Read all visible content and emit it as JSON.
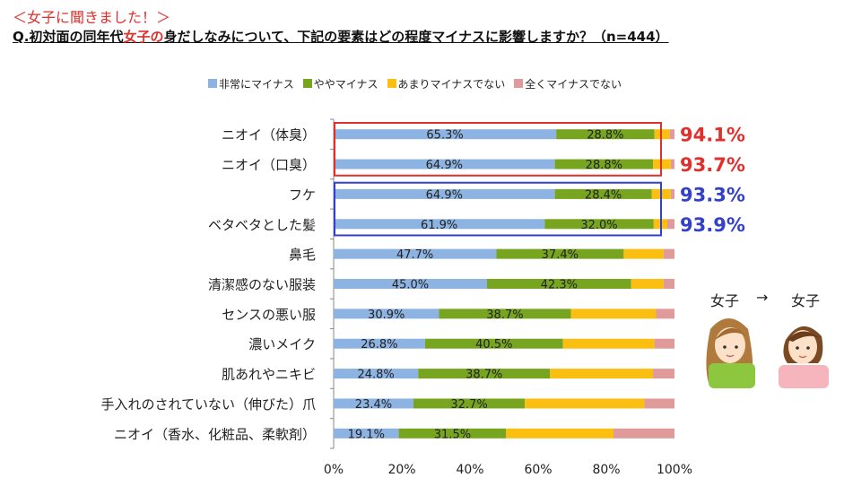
{
  "header": {
    "tag": "＜女子に聞きました！＞",
    "question_prefix": "Q.初対面の同年代",
    "question_highlight": "女子の",
    "question_suffix": "身だしなみについて、下記の要素はどの程度マイナスに影響しますか？（n=444）"
  },
  "colors": {
    "very_negative": "#8db3e2",
    "somewhat_negative": "#77a520",
    "not_very_negative": "#fbbf12",
    "not_negative": "#e09a9a",
    "red_box": "#e0302b",
    "blue_box": "#3340c8"
  },
  "illustration": {
    "label_left": "女子",
    "arrow": "→",
    "label_right": "女子",
    "left_icon": "woman-long-hair-icon",
    "right_icon": "woman-short-hair-icon"
  },
  "chart_data": {
    "type": "bar",
    "orientation": "horizontal-stacked-100",
    "legend_position": "top",
    "categories": [
      "ニオイ（体臭）",
      "ニオイ（口臭）",
      "フケ",
      "ベタベタとした髪",
      "鼻毛",
      "清潔感のない服装",
      "センスの悪い服",
      "濃いメイク",
      "肌あれやニキビ",
      "手入れのされていない（伸びた）爪",
      "ニオイ（香水、化粧品、柔軟剤）"
    ],
    "series": [
      {
        "name": "非常にマイナス",
        "values": [
          65.3,
          64.9,
          64.9,
          61.9,
          47.7,
          45.0,
          30.9,
          26.8,
          24.8,
          23.4,
          19.1
        ]
      },
      {
        "name": "ややマイナス",
        "values": [
          28.8,
          28.8,
          28.4,
          32.0,
          37.4,
          42.3,
          38.7,
          40.5,
          38.7,
          32.7,
          31.5
        ]
      },
      {
        "name": "あまりマイナスでない",
        "values": [
          4.5,
          5.2,
          5.6,
          4.0,
          11.7,
          9.5,
          25.0,
          26.8,
          30.2,
          35.1,
          31.5
        ]
      },
      {
        "name": "全くマイナスでない",
        "values": [
          1.4,
          1.1,
          1.1,
          2.1,
          3.2,
          3.2,
          5.4,
          5.9,
          6.3,
          8.8,
          17.9
        ]
      }
    ],
    "data_labels": [
      [
        "65.3%",
        "64.9%",
        "64.9%",
        "61.9%",
        "47.7%",
        "45.0%",
        "30.9%",
        "26.8%",
        "24.8%",
        "23.4%",
        "19.1%"
      ],
      [
        "28.8%",
        "28.8%",
        "28.4%",
        "32.0%",
        "37.4%",
        "42.3%",
        "38.7%",
        "40.5%",
        "38.7%",
        "32.7%",
        "31.5%"
      ]
    ],
    "totals": [
      {
        "row": 0,
        "label": "94.1%",
        "group": "red"
      },
      {
        "row": 1,
        "label": "93.7%",
        "group": "red"
      },
      {
        "row": 2,
        "label": "93.3%",
        "group": "blue"
      },
      {
        "row": 3,
        "label": "93.9%",
        "group": "blue"
      }
    ],
    "highlight_boxes": [
      {
        "rows": [
          0,
          1
        ],
        "color": "red"
      },
      {
        "rows": [
          2,
          3
        ],
        "color": "blue"
      }
    ],
    "xlim": [
      0,
      100
    ],
    "x_ticks": [
      "0%",
      "20%",
      "40%",
      "60%",
      "80%",
      "100%"
    ],
    "grid": false
  }
}
